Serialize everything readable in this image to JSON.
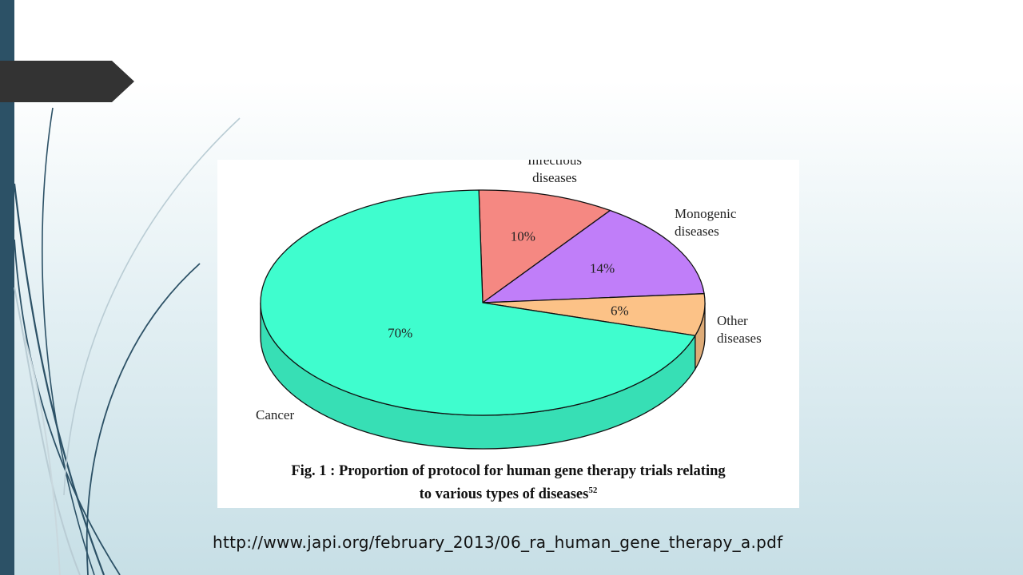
{
  "slide": {
    "source_url": "http://www.japi.org/february_2013/06_ra_human_gene_therapy_a.pdf"
  },
  "figure": {
    "caption_prefix": "Fig. 1 : ",
    "caption_line1": "Proportion of protocol for human gene therapy trials relating",
    "caption_line2": "to various types of diseases",
    "caption_ref": "52"
  },
  "colors": {
    "sidebar": "#2c5166",
    "title_tab": "#333333"
  },
  "chart_data": {
    "type": "pie",
    "title": "",
    "slices": [
      {
        "label_lines": [
          "Infectious",
          "diseases"
        ],
        "value": 10,
        "value_label": "10%",
        "color": "#f58882"
      },
      {
        "label_lines": [
          "Monogenic",
          "diseases"
        ],
        "value": 14,
        "value_label": "14%",
        "color": "#c07ef9"
      },
      {
        "label_lines": [
          "Other",
          "diseases"
        ],
        "value": 6,
        "value_label": "6%",
        "color": "#fcc287"
      },
      {
        "label_lines": [
          "Cancer"
        ],
        "value": 70,
        "value_label": "70%",
        "color": "#3ffdce"
      }
    ],
    "style": "3d"
  }
}
